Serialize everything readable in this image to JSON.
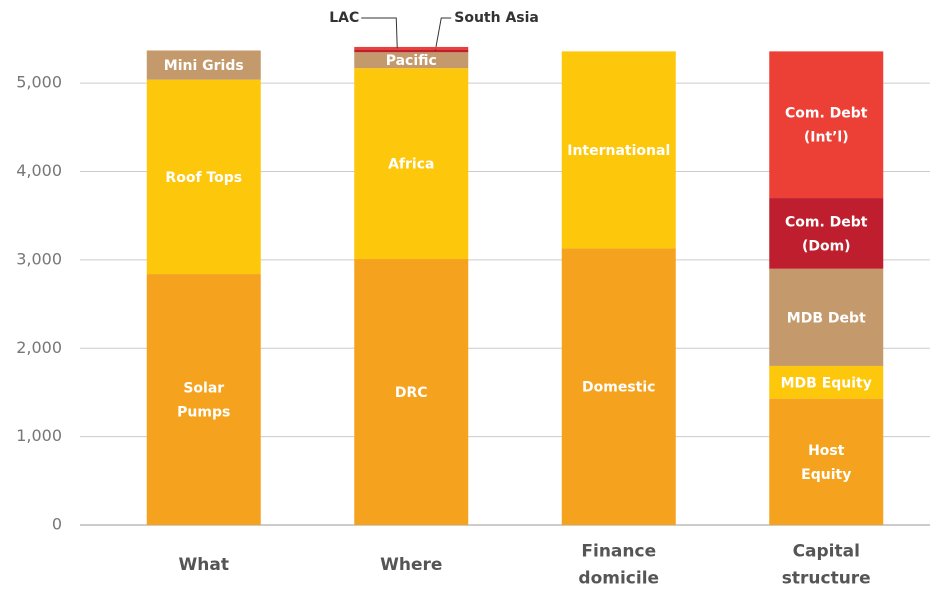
{
  "chart_data": {
    "type": "stacked_bar",
    "categories": [
      "What",
      "Where",
      "Finance\ndomicile",
      "Capital\nstructure"
    ],
    "series": [
      {
        "name": "Solar\nPumps",
        "color": "#f5a31e",
        "values": [
          2840,
          null,
          null,
          null
        ]
      },
      {
        "name": "Roof Tops",
        "color": "#fdc70c",
        "values": [
          2200,
          null,
          null,
          null
        ]
      },
      {
        "name": "Mini Grids",
        "color": "#c49a6c",
        "values": [
          330,
          null,
          null,
          null
        ]
      },
      {
        "name": "DRC",
        "color": "#f5a31e",
        "values": [
          null,
          3010,
          null,
          null
        ]
      },
      {
        "name": "Africa",
        "color": "#fdc70c",
        "values": [
          null,
          2160,
          null,
          null
        ]
      },
      {
        "name": "Pacific",
        "color": "#c49a6c",
        "values": [
          null,
          180,
          null,
          null
        ]
      },
      {
        "name": "South Asia",
        "color": "#be1e2d",
        "values": [
          null,
          30,
          null,
          null
        ]
      },
      {
        "name": "LAC",
        "color": "#ec4037",
        "values": [
          null,
          30,
          null,
          null
        ]
      },
      {
        "name": "Domestic",
        "color": "#f5a31e",
        "values": [
          null,
          null,
          3130,
          null
        ]
      },
      {
        "name": "International",
        "color": "#fdc70c",
        "values": [
          null,
          null,
          2230,
          null
        ]
      },
      {
        "name": "Host\nEquity",
        "color": "#f5a31e",
        "values": [
          null,
          null,
          null,
          1430
        ]
      },
      {
        "name": "MDB Equity",
        "color": "#fdc70c",
        "values": [
          null,
          null,
          null,
          370
        ]
      },
      {
        "name": "MDB Debt",
        "color": "#c49a6c",
        "values": [
          null,
          null,
          null,
          1100
        ]
      },
      {
        "name": "Com. Debt\n(Dom)",
        "color": "#be1e2d",
        "values": [
          null,
          null,
          null,
          800
        ]
      },
      {
        "name": "Com. Debt\n(Int’l)",
        "color": "#ec4037",
        "values": [
          null,
          null,
          null,
          1660
        ]
      }
    ],
    "ylim": [
      0,
      5500
    ],
    "yticks": [
      0,
      {
        "value": 1000,
        "label": "1,000"
      },
      {
        "value": 2000,
        "label": "2,000"
      },
      {
        "value": 3000,
        "label": "3,000"
      },
      {
        "value": 4000,
        "label": "4,000"
      },
      {
        "value": 5000,
        "label": "5,000"
      }
    ],
    "grid": true
  }
}
